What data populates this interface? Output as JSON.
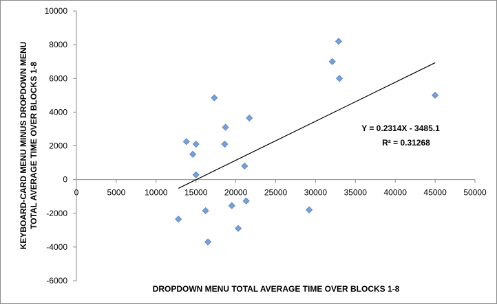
{
  "chart_data": {
    "type": "scatter",
    "title": "",
    "xlabel": "DROPDOWN MENU TOTAL AVERAGE TIME OVER BLOCKS 1-8",
    "ylabel": [
      "KEYBOARD-CARD MENU MINUS DROPDOWN MENU",
      "TOTAL AVERAGE TIME OVER BLOCKS 1-8"
    ],
    "xlim": [
      0,
      50000
    ],
    "ylim": [
      -6000,
      10000
    ],
    "xticks": [
      "0",
      "5000",
      "10000",
      "15000",
      "20000",
      "25000",
      "30000",
      "35000",
      "40000",
      "45000",
      "50000"
    ],
    "yticks": [
      "10000",
      "8000",
      "6000",
      "4000",
      "2000",
      "0",
      "-2000",
      "-4000",
      "-6000"
    ],
    "grid": false,
    "legend": "none",
    "marker_color": "#7BA0D6",
    "marker_edge_color": "#4F7FC0",
    "trendline_color": "#000000",
    "series": [
      {
        "x": [
          13800,
          14600,
          15000,
          15000,
          12800,
          16200,
          16500,
          17300,
          18600,
          18700,
          19500,
          20300,
          21100,
          21300,
          21700,
          29200,
          32100,
          32900,
          33000,
          45000
        ],
        "y": [
          2250,
          1500,
          2100,
          280,
          -2350,
          -1850,
          -3700,
          4850,
          2100,
          3100,
          -1550,
          -2900,
          800,
          -1270,
          3650,
          -1800,
          7000,
          8200,
          6000,
          5000
        ]
      }
    ],
    "trendline": {
      "slope": 0.2314,
      "intercept": -3485.1,
      "x_range": [
        12800,
        45000
      ],
      "equation": "Y = 0.2314X - 3485.1",
      "r_squared": "R² = 0.31268"
    }
  }
}
